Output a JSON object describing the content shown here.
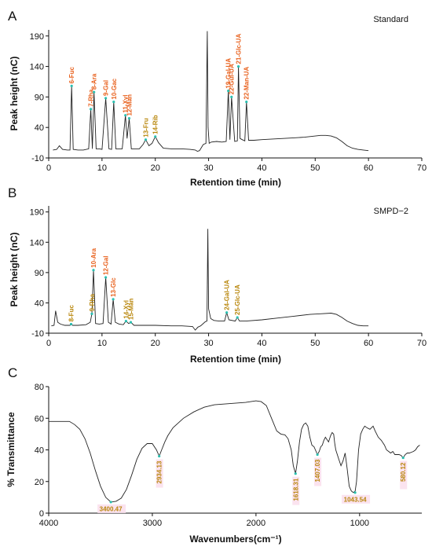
{
  "colors": {
    "trace": "#222222",
    "label_strong": "#e8601c",
    "label_weak": "#b8860b",
    "marker": "#2bbfb0",
    "ir_label_bg": "#fbe3ef"
  },
  "chart_data": [
    {
      "panel": "A",
      "type": "line",
      "sample_label": "Standard",
      "xlabel": "Retention time (min)",
      "ylabel": "Peak height (nC)",
      "xlim": [
        0,
        70
      ],
      "ylim": [
        -10,
        200
      ],
      "xticks": [
        "0",
        "10",
        "20",
        "30",
        "40",
        "50",
        "60",
        "70"
      ],
      "yticks": [
        "-10",
        "40",
        "90",
        "140",
        "190"
      ],
      "series": [
        {
          "x": [
            0.8,
            1.5,
            2.0,
            2.6,
            3.5,
            4.0,
            4.3,
            4.6,
            5.5,
            6.5,
            7.5,
            7.9,
            8.2,
            8.5,
            8.9,
            9.5,
            10.0,
            10.7,
            11.3,
            11.8,
            12.2,
            12.6,
            13.2,
            13.8,
            14.4,
            14.7,
            15.1,
            15.5,
            16.3,
            17.0,
            17.7,
            18.2,
            18.8,
            19.4,
            20.0,
            20.6,
            21.5,
            23.0,
            25.0,
            26.5,
            27.5,
            27.9,
            28.3,
            29.0,
            29.5,
            29.75,
            29.9,
            30.1,
            30.5,
            31.5,
            32.5,
            33.3,
            33.7,
            34.0,
            34.3,
            34.9,
            35.4,
            35.6,
            35.9,
            36.3,
            36.8,
            37.1,
            37.5,
            38.5,
            40.0,
            42.0,
            44.0,
            46.0,
            48.0,
            50.0,
            51.0,
            52.0,
            53.0,
            54.0,
            55.0,
            56.0,
            57.0,
            58.0,
            59.0,
            60.0
          ],
          "y": [
            3,
            4,
            10,
            4,
            3,
            3,
            108,
            4,
            3,
            3,
            5,
            70,
            5,
            98,
            5,
            5,
            4,
            88,
            5,
            4,
            82,
            5,
            5,
            5,
            60,
            22,
            55,
            5,
            5,
            5,
            12,
            20,
            10,
            14,
            25,
            15,
            6,
            5,
            5,
            4,
            3,
            1,
            2,
            12,
            14,
            198,
            40,
            14,
            16,
            17,
            16,
            17,
            100,
            20,
            90,
            17,
            18,
            140,
            22,
            20,
            18,
            82,
            19,
            19,
            20,
            21,
            22,
            23,
            24,
            26,
            27,
            27,
            26,
            23,
            17,
            10,
            6,
            4,
            3,
            2
          ]
        }
      ],
      "peaks": [
        {
          "label": "6-Fuc",
          "x": 4.3,
          "y": 108
        },
        {
          "label": "7-Rha",
          "x": 7.9,
          "y": 70
        },
        {
          "label": "8-Ara",
          "x": 8.5,
          "y": 98
        },
        {
          "label": "9-Gal",
          "x": 10.7,
          "y": 88
        },
        {
          "label": "10-Gac",
          "x": 12.2,
          "y": 82
        },
        {
          "label": "11-Xyl",
          "x": 14.4,
          "y": 60
        },
        {
          "label": "12-Man",
          "x": 15.1,
          "y": 55
        },
        {
          "label": "13-Fru",
          "x": 18.2,
          "y": 20
        },
        {
          "label": "14-Rib",
          "x": 20.0,
          "y": 25
        },
        {
          "label": "19-Gal-UA",
          "x": 33.7,
          "y": 100
        },
        {
          "label": "22-Gul-UA",
          "x": 34.3,
          "y": 90
        },
        {
          "label": "21-Glc-UA",
          "x": 35.6,
          "y": 140
        },
        {
          "label": "22-Man-UA",
          "x": 37.1,
          "y": 82
        }
      ]
    },
    {
      "panel": "B",
      "type": "line",
      "sample_label": "SMPD−2",
      "xlabel": "Retention time (min)",
      "ylabel": "Peak height (nC)",
      "xlim": [
        0,
        70
      ],
      "ylim": [
        -10,
        200
      ],
      "xticks": [
        "0",
        "10",
        "20",
        "30",
        "40",
        "50",
        "60",
        "70"
      ],
      "yticks": [
        "-10",
        "40",
        "90",
        "140",
        "190"
      ],
      "series": [
        {
          "x": [
            0.5,
            1.0,
            1.3,
            1.7,
            2.2,
            3.0,
            4.0,
            4.2,
            4.5,
            5.5,
            7.0,
            7.8,
            8.1,
            8.4,
            8.8,
            9.5,
            10.2,
            10.7,
            11.2,
            11.7,
            12.1,
            12.5,
            13.2,
            14.0,
            14.5,
            15.0,
            15.4,
            16.0,
            18.0,
            20.0,
            23.0,
            25.0,
            27.0,
            27.5,
            28.0,
            28.5,
            29.4,
            29.7,
            29.85,
            30.0,
            30.4,
            31.0,
            32.0,
            33.0,
            33.4,
            33.8,
            35.0,
            35.4,
            35.8,
            37.0,
            40.0,
            43.0,
            46.0,
            49.0,
            51.0,
            53.0,
            54.0,
            55.0,
            56.0,
            57.0,
            58.0,
            59.0,
            60.0
          ],
          "y": [
            2,
            3,
            27,
            8,
            5,
            3,
            3,
            5,
            3,
            3,
            4,
            8,
            22,
            94,
            6,
            5,
            6,
            82,
            8,
            5,
            46,
            8,
            5,
            4,
            10,
            6,
            8,
            3,
            3,
            3,
            2,
            2,
            1,
            -5,
            0,
            2,
            9,
            10,
            162,
            30,
            14,
            11,
            10,
            10,
            24,
            12,
            10,
            16,
            10,
            10,
            12,
            15,
            18,
            21,
            22,
            23,
            21,
            16,
            10,
            6,
            3,
            2,
            2
          ]
        }
      ],
      "peaks": [
        {
          "label": "8-Fuc",
          "x": 4.2,
          "y": 5
        },
        {
          "label": "9-Rha",
          "x": 8.1,
          "y": 22
        },
        {
          "label": "10-Ara",
          "x": 8.4,
          "y": 94
        },
        {
          "label": "12-Gal",
          "x": 10.7,
          "y": 82
        },
        {
          "label": "13-Glc",
          "x": 12.1,
          "y": 46
        },
        {
          "label": "14-Xyl",
          "x": 14.5,
          "y": 10
        },
        {
          "label": "15-Man",
          "x": 15.4,
          "y": 8
        },
        {
          "label": "24-Gal-UA",
          "x": 33.4,
          "y": 24
        },
        {
          "label": "25-Glc-UA",
          "x": 35.4,
          "y": 16
        }
      ]
    },
    {
      "panel": "C",
      "type": "line",
      "xlabel": "Wavenumbers(cm⁻¹)",
      "ylabel": "% Transmittance",
      "xlim": [
        4000,
        400
      ],
      "ylim": [
        0,
        80
      ],
      "xticks": [
        "4000",
        "3000",
        "2000",
        "1000"
      ],
      "yticks": [
        "0",
        "20",
        "40",
        "60",
        "80"
      ],
      "series": [
        {
          "x": [
            4000,
            3900,
            3800,
            3750,
            3700,
            3650,
            3600,
            3550,
            3500,
            3450,
            3400,
            3350,
            3300,
            3250,
            3200,
            3150,
            3100,
            3050,
            3000,
            2960,
            2934,
            2910,
            2880,
            2850,
            2800,
            2700,
            2600,
            2500,
            2400,
            2300,
            2200,
            2100,
            2000,
            1950,
            1900,
            1850,
            1800,
            1760,
            1720,
            1690,
            1660,
            1640,
            1618,
            1600,
            1580,
            1560,
            1540,
            1520,
            1500,
            1480,
            1460,
            1440,
            1420,
            1407,
            1390,
            1375,
            1360,
            1345,
            1330,
            1320,
            1300,
            1280,
            1265,
            1250,
            1240,
            1230,
            1200,
            1180,
            1160,
            1140,
            1120,
            1100,
            1080,
            1060,
            1043,
            1030,
            1010,
            990,
            970,
            950,
            930,
            900,
            870,
            850,
            820,
            790,
            760,
            740,
            720,
            700,
            680,
            660,
            640,
            620,
            600,
            580,
            560,
            540,
            520,
            500,
            480,
            460,
            440,
            420
          ],
          "y": [
            58,
            58,
            58,
            56,
            53,
            47,
            38,
            27,
            17,
            10,
            7,
            7.5,
            9.5,
            15,
            24,
            34,
            41,
            44,
            44,
            40,
            36,
            40,
            45,
            49,
            54,
            60,
            64,
            67,
            68.5,
            69,
            69.5,
            70,
            71,
            70.5,
            68,
            60,
            52,
            50,
            49.5,
            47,
            40,
            30,
            25,
            33,
            45,
            53,
            56,
            57,
            55,
            48,
            43,
            42,
            39,
            37,
            39,
            42,
            43,
            46,
            48,
            47,
            45,
            49,
            51,
            50,
            44,
            40,
            34,
            30,
            33,
            38,
            28,
            17,
            14,
            13,
            14,
            20,
            40,
            50,
            53,
            55,
            54,
            53,
            55,
            52,
            48,
            46,
            43,
            40,
            39,
            38,
            39,
            37,
            37,
            37,
            36.5,
            35,
            37,
            38,
            38,
            38.5,
            39,
            40,
            42,
            43
          ]
        }
      ],
      "annotations": [
        {
          "label": "3400.47",
          "x": 3400.47,
          "y": 7
        },
        {
          "label": "2934.13",
          "x": 2934.13,
          "y": 36
        },
        {
          "label": "1618.31",
          "x": 1618.31,
          "y": 25
        },
        {
          "label": "1407.03",
          "x": 1407.03,
          "y": 37
        },
        {
          "label": "1043.54",
          "x": 1043.54,
          "y": 13
        },
        {
          "label": "580.12",
          "x": 580.12,
          "y": 35
        }
      ]
    }
  ]
}
